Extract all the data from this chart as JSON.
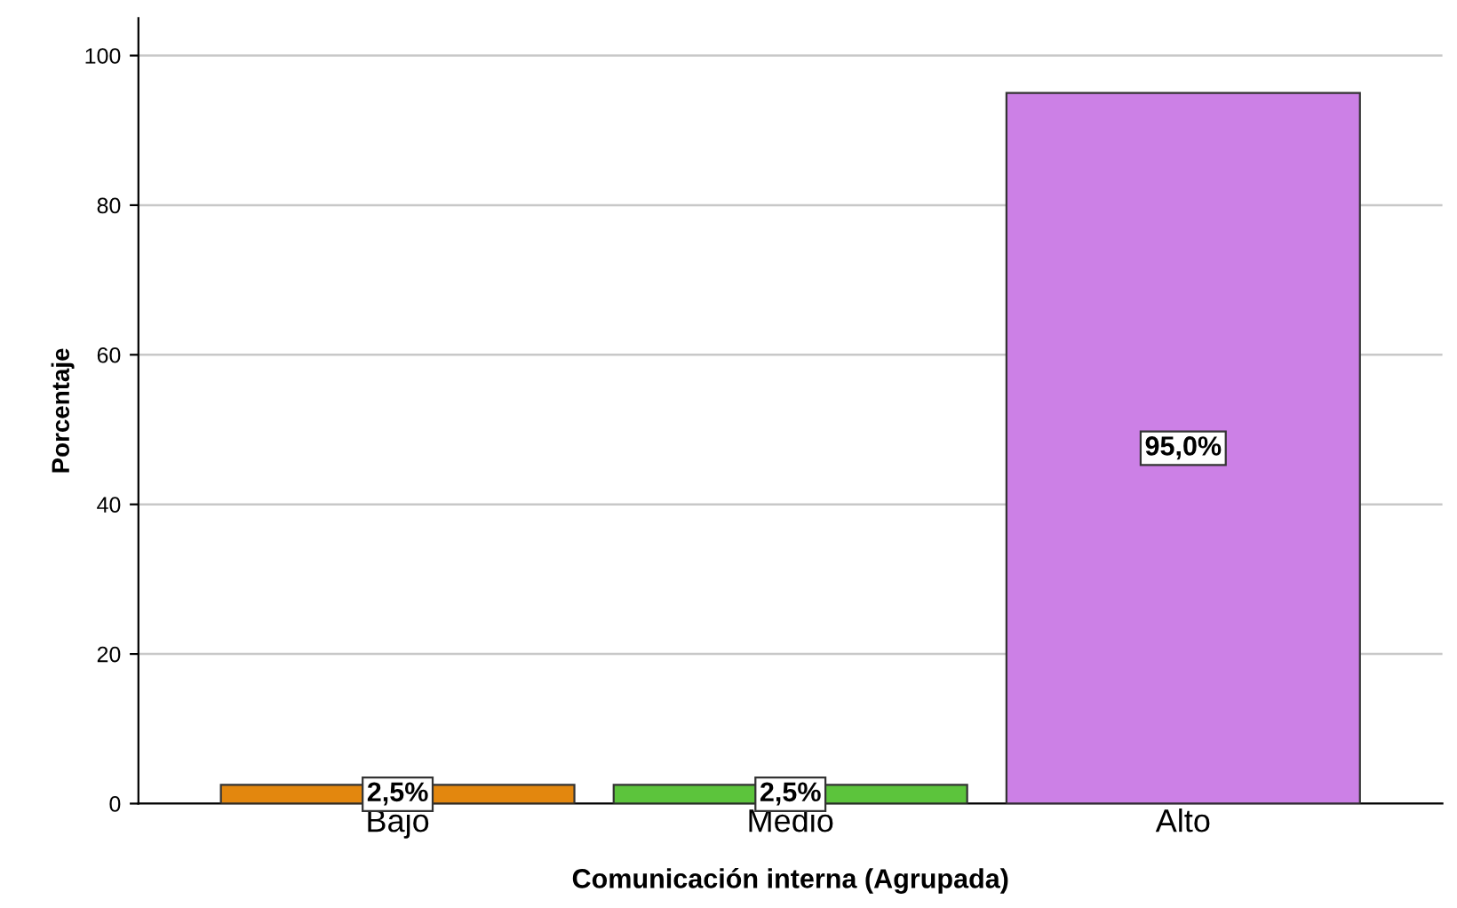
{
  "chart_data": {
    "type": "bar",
    "xlabel": "Comunicación interna (Agrupada)",
    "ylabel": "Porcentaje",
    "categories": [
      "Bajo",
      "Medio",
      "Alto"
    ],
    "values": [
      2.5,
      2.5,
      95.0
    ],
    "colors": [
      "#e3870e",
      "#5cc43c",
      "#cc80e6"
    ],
    "value_labels": [
      "2,5%",
      "2,5%",
      "95,0%"
    ],
    "ylim": [
      0,
      105
    ],
    "yticks": [
      0,
      20,
      40,
      60,
      80,
      100
    ],
    "grid": "y"
  }
}
